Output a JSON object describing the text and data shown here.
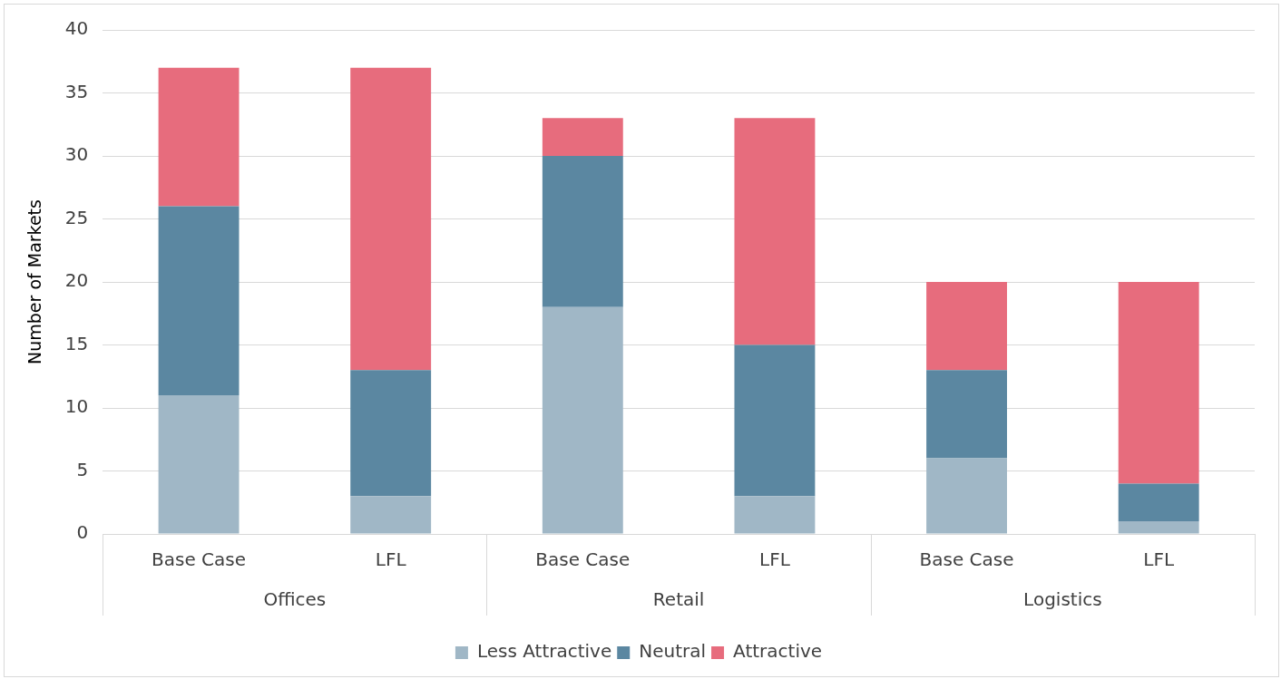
{
  "chart_data": {
    "type": "bar",
    "stacked": true,
    "ylabel": "Number of Markets",
    "categories": [
      "Base Case",
      "LFL",
      "Base Case",
      "LFL",
      "Base Case",
      "LFL"
    ],
    "series": [
      {
        "name": "Less Attractive",
        "color": "#a0b7c6",
        "values": [
          11,
          3,
          18,
          3,
          6,
          1
        ]
      },
      {
        "name": "Neutral",
        "color": "#5b87a1",
        "values": [
          15,
          10,
          12,
          12,
          7,
          3
        ]
      },
      {
        "name": "Attractive",
        "color": "#e76c7d",
        "values": [
          11,
          24,
          3,
          18,
          7,
          16
        ]
      }
    ],
    "annotations": [
      "Offices",
      "Retail",
      "Logistics"
    ],
    "ylim": [
      0,
      40
    ],
    "yticks": [
      0,
      5,
      10,
      15,
      20,
      25,
      30,
      35,
      40
    ],
    "grid": "y",
    "legend": "bottom"
  }
}
